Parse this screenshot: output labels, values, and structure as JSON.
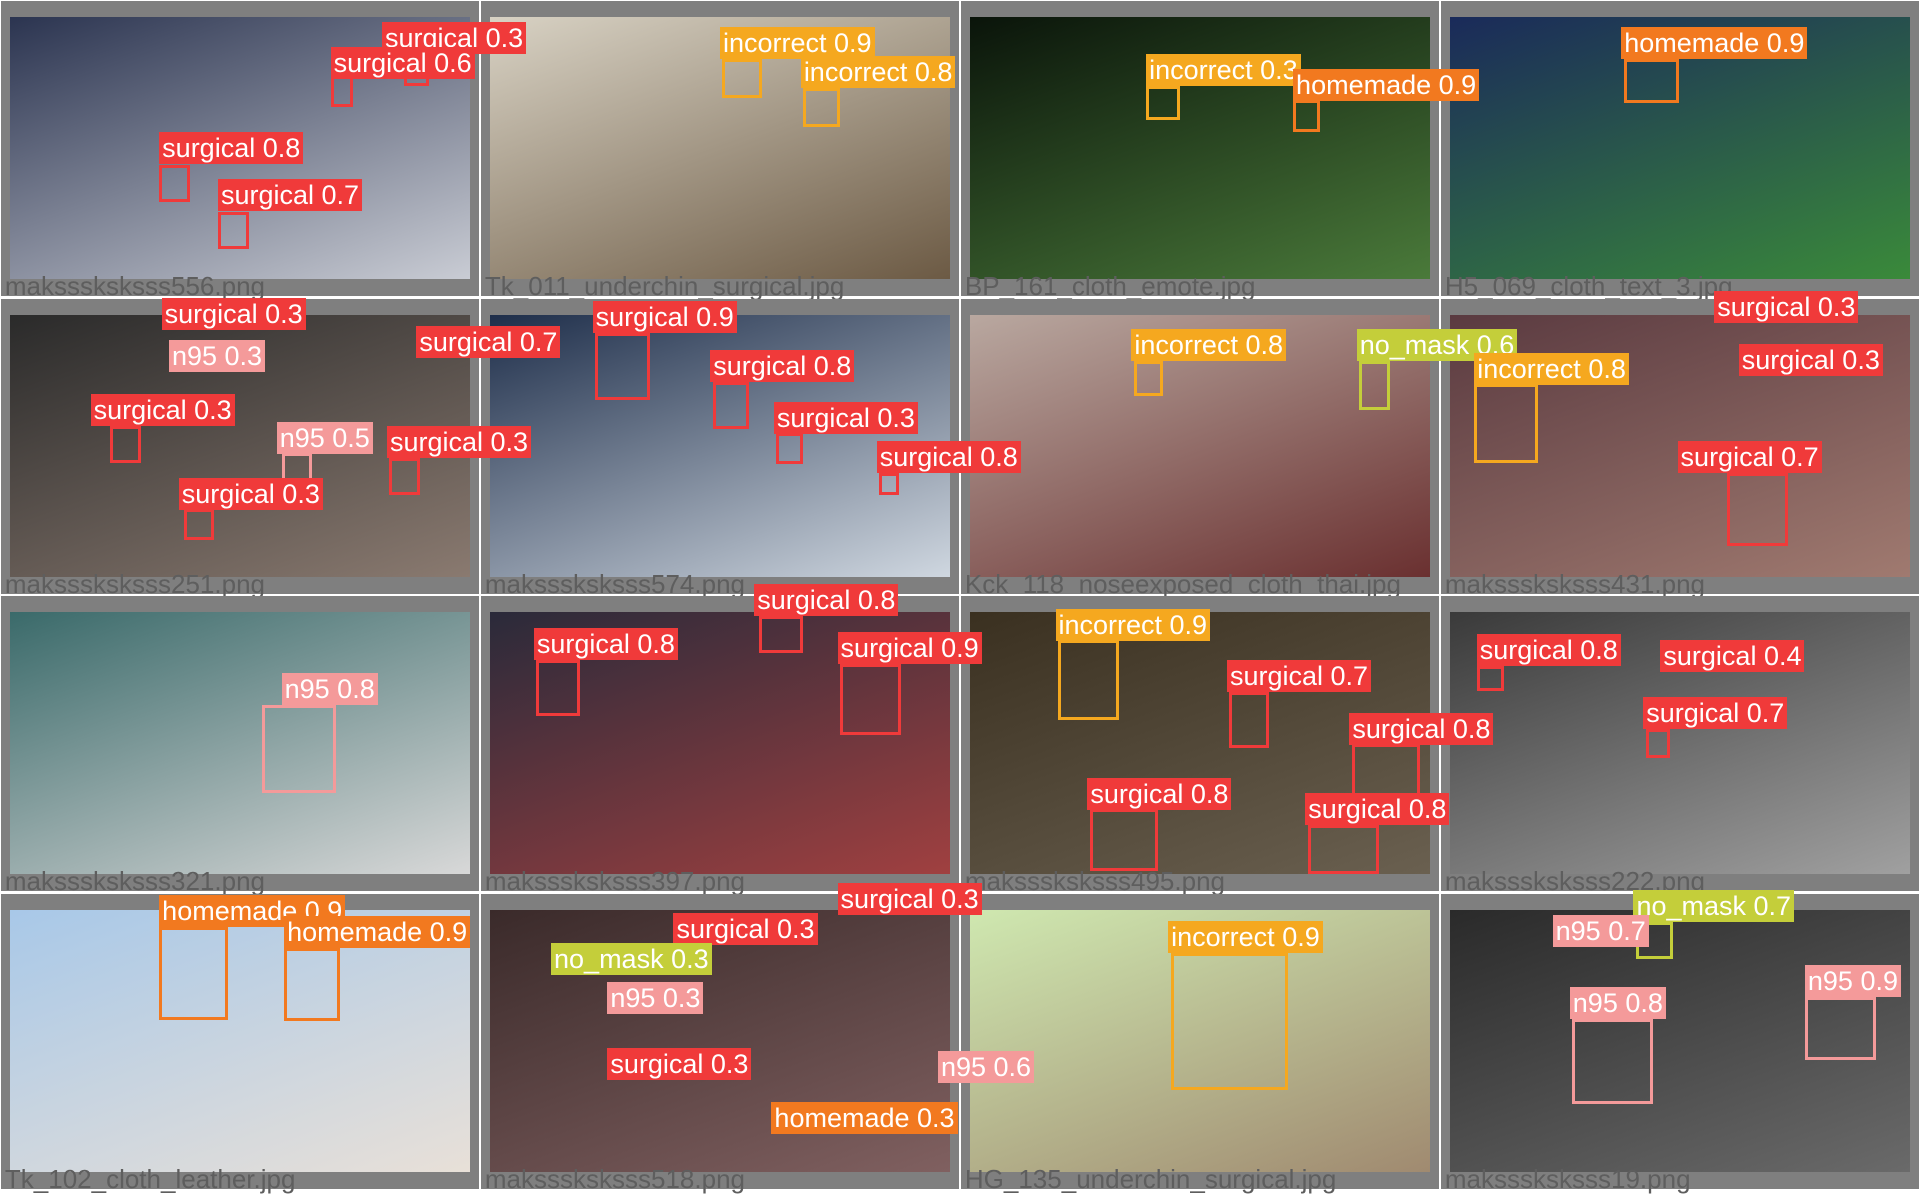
{
  "tiles": [
    {
      "filename": "maksssksksss556.png",
      "detections": [
        "surgical 0.8",
        "surgical 0.7",
        "surgical 0.3",
        "surgical 0.6"
      ]
    },
    {
      "filename": "Tk_011_underchin_surgical.jpg",
      "detections": [
        "incorrect 0.9",
        "incorrect 0.8"
      ]
    },
    {
      "filename": "BP_161_cloth_emote.jpg",
      "detections": [
        "incorrect 0.3",
        "homemade 0.9"
      ]
    },
    {
      "filename": "H5_069_cloth_text_3.jpg",
      "detections": [
        "homemade 0.9"
      ]
    },
    {
      "filename": "maksssksksss251.png",
      "detections": [
        "surgical 0.3",
        "surgical 0.7",
        "surgical 0.3",
        "n95 0.5",
        "surgical 0.3",
        "n95 0.3",
        "surgical 0.3"
      ]
    },
    {
      "filename": "maksssksksss574.png",
      "detections": [
        "surgical 0.9",
        "surgical 0.8",
        "surgical 0.3",
        "surgical 0.8"
      ]
    },
    {
      "filename": "Kck_118_noseexposed_cloth_thai.jpg",
      "detections": [
        "incorrect 0.8",
        "no_mask 0.6"
      ]
    },
    {
      "filename": "maksssksksss431.png",
      "detections": [
        "incorrect 0.8",
        "surgical 0.7",
        "surgical 0.3",
        "surgical 0.3"
      ]
    },
    {
      "filename": "maksssksksss321.png",
      "detections": [
        "n95 0.8"
      ]
    },
    {
      "filename": "maksssksksss397.png",
      "detections": [
        "surgical 0.8",
        "surgical 0.8",
        "surgical 0.9"
      ]
    },
    {
      "filename": "maksssksksss495.png",
      "detections": [
        "incorrect 0.9",
        "surgical 0.7",
        "surgical 0.8",
        "surgical 0.8",
        "surgical 0.8"
      ]
    },
    {
      "filename": "maksssksksss222.png",
      "detections": [
        "surgical 0.8",
        "surgical 0.7",
        "surgical 0.4"
      ]
    },
    {
      "filename": "Tk_102_cloth_leather.jpg",
      "detections": [
        "homemade 0.9",
        "homemade 0.9"
      ]
    },
    {
      "filename": "maksssksksss518.png",
      "detections": [
        "surgical 0.3",
        "surgical 0.3",
        "no_mask 0.3",
        "n95 0.3",
        "surgical 0.3",
        "homemade 0.3",
        "n95 0.6"
      ]
    },
    {
      "filename": "HG_135_underchin_surgical.jpg",
      "detections": [
        "incorrect 0.9"
      ]
    },
    {
      "filename": "maksssksksss19.png",
      "detections": [
        "no_mask 0.7",
        "n95 0.7",
        "n95 0.9",
        "n95 0.8"
      ]
    }
  ]
}
